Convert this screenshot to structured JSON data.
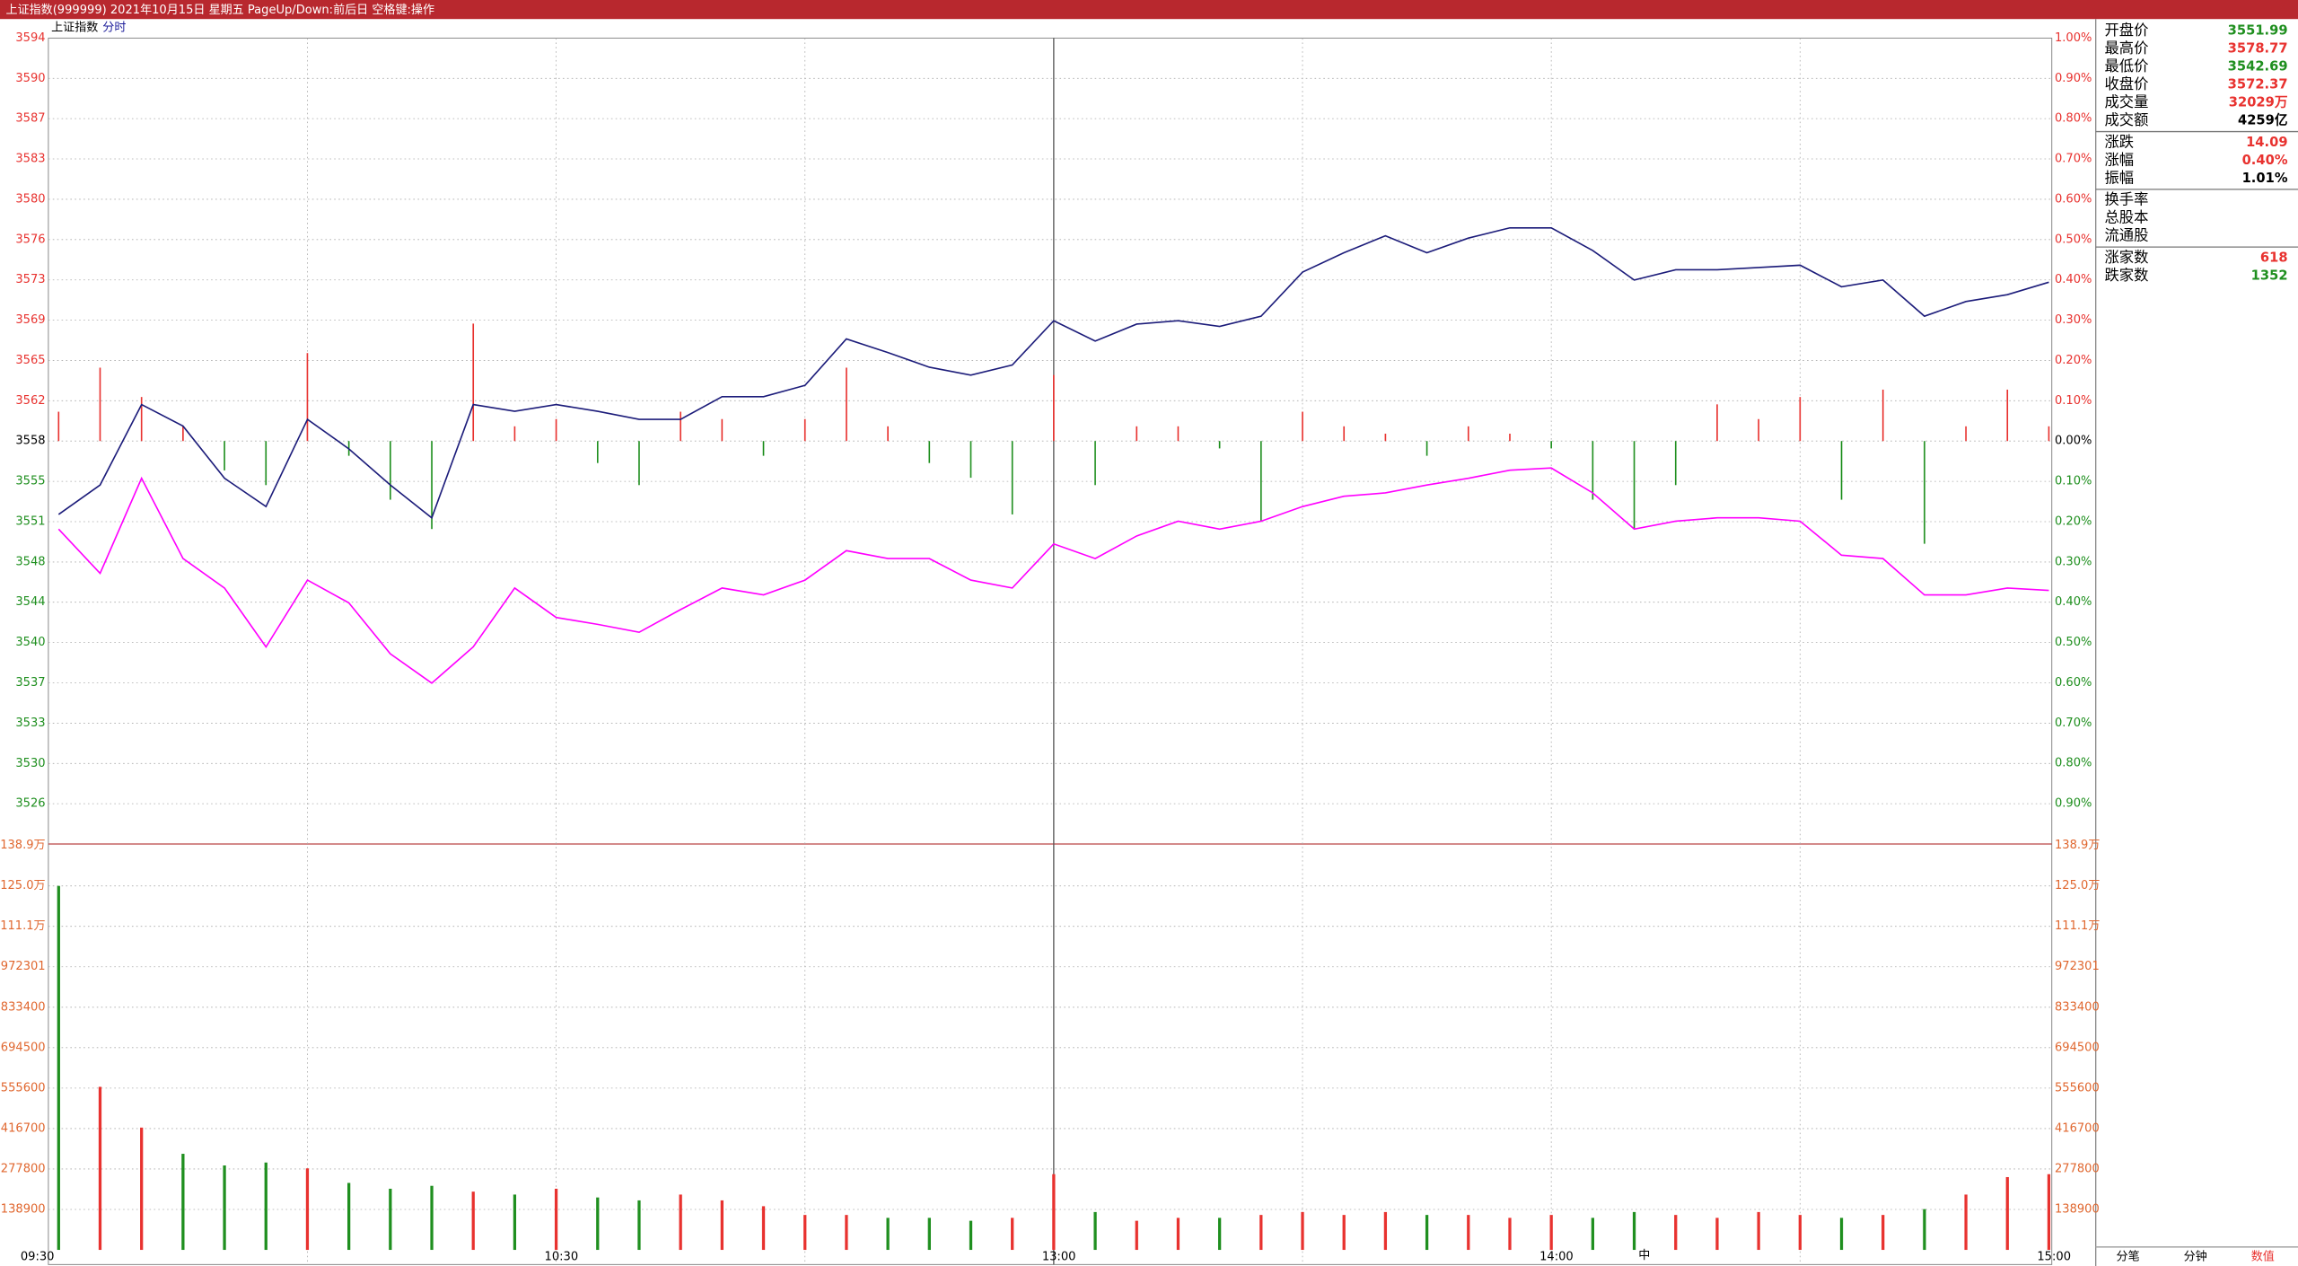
{
  "window": {
    "title": "上证指数(999999) 2021年10月15日 星期五 PageUp/Down:前后日 空格键:操作",
    "name": "上证指数",
    "mode": "分时"
  },
  "chart_data": {
    "type": "line",
    "grid": true,
    "categories": [
      "09:30",
      null,
      null,
      null,
      null,
      null,
      null,
      null,
      null,
      null,
      null,
      null,
      "10:30",
      null,
      null,
      null,
      null,
      null,
      null,
      null,
      null,
      null,
      null,
      null,
      "13:00",
      null,
      null,
      null,
      null,
      null,
      null,
      null,
      null,
      null,
      null,
      null,
      "14:00",
      null,
      null,
      null,
      null,
      null,
      null,
      null,
      null,
      null,
      null,
      null,
      "15:00"
    ],
    "ylim": [
      3522.7,
      3593.86
    ],
    "yticks": [
      {
        "value": 3593.86,
        "label": "3594"
      },
      {
        "value": 3590.3,
        "label": "3590"
      },
      {
        "value": 3586.75,
        "label": "3587"
      },
      {
        "value": 3583.19,
        "label": "3583"
      },
      {
        "value": 3579.63,
        "label": "3580"
      },
      {
        "value": 3576.07,
        "label": "3576"
      },
      {
        "value": 3572.51,
        "label": "3573"
      },
      {
        "value": 3568.95,
        "label": "3569"
      },
      {
        "value": 3565.4,
        "label": "3565"
      },
      {
        "value": 3561.84,
        "label": "3562"
      },
      {
        "value": 3558.28,
        "label": "3558"
      },
      {
        "value": 3554.72,
        "label": "3555"
      },
      {
        "value": 3551.16,
        "label": "3551"
      },
      {
        "value": 3547.6,
        "label": "3548"
      },
      {
        "value": 3544.05,
        "label": "3544"
      },
      {
        "value": 3540.49,
        "label": "3540"
      },
      {
        "value": 3536.93,
        "label": "3537"
      },
      {
        "value": 3533.37,
        "label": "3533"
      },
      {
        "value": 3529.81,
        "label": "3530"
      },
      {
        "value": 3526.26,
        "label": "3526"
      }
    ],
    "y2lim": [
      -1.0,
      1.0
    ],
    "y2ticks": [
      {
        "value": 1.0,
        "label": "1.00%"
      },
      {
        "value": 0.9,
        "label": "0.90%"
      },
      {
        "value": 0.8,
        "label": "0.80%"
      },
      {
        "value": 0.7,
        "label": "0.70%"
      },
      {
        "value": 0.6,
        "label": "0.60%"
      },
      {
        "value": 0.5,
        "label": "0.50%"
      },
      {
        "value": 0.4,
        "label": "0.40%"
      },
      {
        "value": 0.3,
        "label": "0.30%"
      },
      {
        "value": 0.2,
        "label": "0.20%"
      },
      {
        "value": 0.1,
        "label": "0.10%"
      },
      {
        "value": 0,
        "label": "0.00%"
      },
      {
        "value": -0.1,
        "label": "0.10%"
      },
      {
        "value": -0.2,
        "label": "0.20%"
      },
      {
        "value": -0.3,
        "label": "0.30%"
      },
      {
        "value": -0.4,
        "label": "0.40%"
      },
      {
        "value": -0.5,
        "label": "0.50%"
      },
      {
        "value": -0.6,
        "label": "0.60%"
      },
      {
        "value": -0.7,
        "label": "0.70%"
      },
      {
        "value": -0.8,
        "label": "0.80%"
      },
      {
        "value": -0.9,
        "label": "0.90%"
      }
    ],
    "up_color": "#e8322f",
    "down_color": "#1f8f1f",
    "series": [
      {
        "color": "#1c1c7a",
        "values": [
          3551.8,
          3554.4,
          3561.5,
          3559.6,
          3555.0,
          3552.5,
          3560.2,
          3557.6,
          3554.4,
          3551.5,
          3561.5,
          3560.9,
          3561.5,
          3560.9,
          3560.2,
          3560.2,
          3562.2,
          3562.2,
          3563.2,
          3567.3,
          3566.1,
          3564.8,
          3564.1,
          3565.0,
          3568.9,
          3567.1,
          3568.6,
          3568.9,
          3568.4,
          3569.3,
          3573.2,
          3574.9,
          3576.4,
          3574.9,
          3576.2,
          3577.1,
          3577.1,
          3575.1,
          3572.5,
          3573.4,
          3573.4,
          3573.6,
          3573.8,
          3571.9,
          3572.5,
          3569.3,
          3570.6,
          3571.2,
          3572.3
        ]
      },
      {
        "color": "#ff00ff",
        "values": [
          3550.5,
          3546.6,
          3555.0,
          3547.9,
          3545.3,
          3540.1,
          3546.0,
          3544.0,
          3539.5,
          3536.9,
          3540.1,
          3545.3,
          3542.7,
          3542.1,
          3541.4,
          3543.4,
          3545.3,
          3544.7,
          3546.0,
          3548.6,
          3547.9,
          3547.9,
          3546.0,
          3545.3,
          3549.2,
          3547.9,
          3549.9,
          3551.2,
          3550.5,
          3551.2,
          3552.5,
          3553.4,
          3553.7,
          3554.4,
          3555.0,
          3555.7,
          3555.9,
          3553.7,
          3550.5,
          3551.2,
          3551.5,
          3551.5,
          3551.2,
          3548.2,
          3547.9,
          3544.7,
          3544.7,
          3545.3,
          3545.1
        ]
      }
    ],
    "bars": [
      3560.87,
      3564.76,
      3562.17,
      3559.58,
      3555.69,
      3554.39,
      3566.05,
      3556.98,
      3553.1,
      3550.51,
      3568.65,
      3559.58,
      3560.22,
      3556.34,
      3554.39,
      3560.87,
      3560.22,
      3556.98,
      3560.22,
      3564.76,
      3559.58,
      3556.34,
      3555.04,
      3551.8,
      3564.11,
      3554.39,
      3559.58,
      3559.58,
      3557.63,
      3551.15,
      3560.87,
      3559.58,
      3558.93,
      3556.98,
      3559.58,
      3558.93,
      3557.63,
      3553.1,
      3550.51,
      3554.39,
      3561.52,
      3560.22,
      3562.17,
      3553.1,
      3562.82,
      3549.21,
      3559.58,
      3562.82,
      3559.58
    ],
    "volume": {
      "ylim": [
        0,
        1389000
      ],
      "yticks": [
        {
          "value": 1389000,
          "label": "138.9万"
        },
        {
          "value": 1250100,
          "label": "125.0万"
        },
        {
          "value": 1111200,
          "label": "111.1万"
        },
        972301,
        833400,
        694500,
        555600,
        416700,
        277800,
        138900
      ],
      "color": "#e0672f",
      "values": [
        1250000,
        560000,
        420000,
        330000,
        290000,
        300000,
        280000,
        230000,
        210000,
        220000,
        200000,
        190000,
        210000,
        180000,
        170000,
        190000,
        170000,
        150000,
        120000,
        120000,
        110000,
        110000,
        100000,
        110000,
        260000,
        130000,
        100000,
        110000,
        110000,
        120000,
        130000,
        120000,
        130000,
        120000,
        120000,
        110000,
        120000,
        110000,
        130000,
        120000,
        110000,
        130000,
        120000,
        110000,
        120000,
        140000,
        190000,
        250000,
        260000
      ]
    }
  },
  "info": [
    [
      {
        "label": "开盘价",
        "value": "3551.99",
        "color": "#1f8f1f"
      },
      {
        "label": "最高价",
        "value": "3578.77",
        "color": "#e8322f"
      },
      {
        "label": "最低价",
        "value": "3542.69",
        "color": "#1f8f1f"
      },
      {
        "label": "收盘价",
        "value": "3572.37",
        "color": "#e8322f"
      },
      {
        "label": "成交量",
        "value": "32029万",
        "color": "#e8322f"
      },
      {
        "label": "成交额",
        "value": "4259亿",
        "color": "#000000"
      }
    ],
    [
      {
        "label": "涨跌",
        "value": "14.09",
        "color": "#e8322f"
      },
      {
        "label": "涨幅",
        "value": "0.40%",
        "color": "#e8322f"
      },
      {
        "label": "振幅",
        "value": "1.01%",
        "color": "#000000"
      }
    ],
    [
      {
        "label": "换手率"
      },
      {
        "label": "总股本"
      },
      {
        "label": "流通股"
      }
    ],
    [
      {
        "label": "涨家数",
        "value": "618",
        "color": "#e8322f"
      },
      {
        "label": "跌家数",
        "value": "1352",
        "color": "#1f8f1f"
      }
    ]
  ],
  "tabs": [
    "分笔",
    "分钟",
    "数值"
  ],
  "toolbar": [
    "中"
  ]
}
